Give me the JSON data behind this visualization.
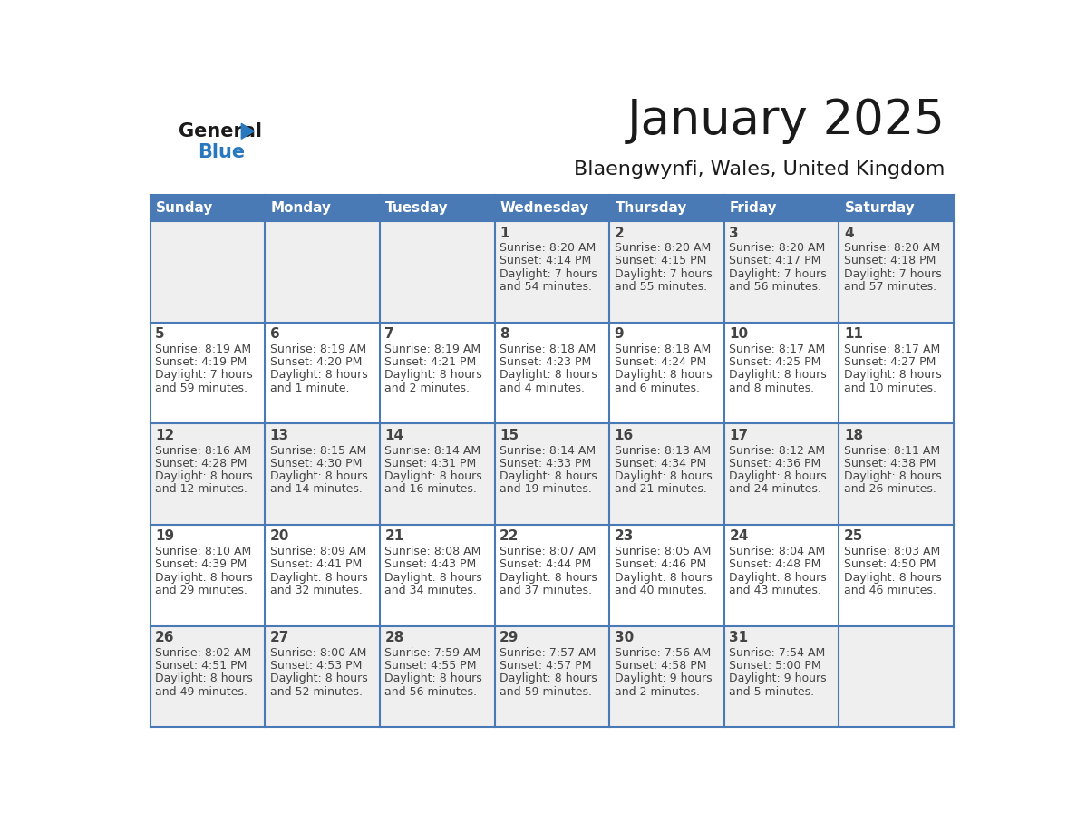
{
  "title": "January 2025",
  "subtitle": "Blaengwynfi, Wales, United Kingdom",
  "days_of_week": [
    "Sunday",
    "Monday",
    "Tuesday",
    "Wednesday",
    "Thursday",
    "Friday",
    "Saturday"
  ],
  "header_bg": "#4a7ab5",
  "header_text_color": "#ffffff",
  "row_bg_light": "#efefef",
  "row_bg_white": "#ffffff",
  "cell_border_color": "#4a7ab5",
  "title_color": "#1a1a1a",
  "subtitle_color": "#1a1a1a",
  "text_color": "#444444",
  "logo_general_color": "#1a1a1a",
  "logo_blue_color": "#2878c0",
  "weeks": [
    [
      {
        "day": null,
        "sunrise": null,
        "sunset": null,
        "daylight": null
      },
      {
        "day": null,
        "sunrise": null,
        "sunset": null,
        "daylight": null
      },
      {
        "day": null,
        "sunrise": null,
        "sunset": null,
        "daylight": null
      },
      {
        "day": 1,
        "sunrise": "8:20 AM",
        "sunset": "4:14 PM",
        "dl1": "Daylight: 7 hours",
        "dl2": "and 54 minutes."
      },
      {
        "day": 2,
        "sunrise": "8:20 AM",
        "sunset": "4:15 PM",
        "dl1": "Daylight: 7 hours",
        "dl2": "and 55 minutes."
      },
      {
        "day": 3,
        "sunrise": "8:20 AM",
        "sunset": "4:17 PM",
        "dl1": "Daylight: 7 hours",
        "dl2": "and 56 minutes."
      },
      {
        "day": 4,
        "sunrise": "8:20 AM",
        "sunset": "4:18 PM",
        "dl1": "Daylight: 7 hours",
        "dl2": "and 57 minutes."
      }
    ],
    [
      {
        "day": 5,
        "sunrise": "8:19 AM",
        "sunset": "4:19 PM",
        "dl1": "Daylight: 7 hours",
        "dl2": "and 59 minutes."
      },
      {
        "day": 6,
        "sunrise": "8:19 AM",
        "sunset": "4:20 PM",
        "dl1": "Daylight: 8 hours",
        "dl2": "and 1 minute."
      },
      {
        "day": 7,
        "sunrise": "8:19 AM",
        "sunset": "4:21 PM",
        "dl1": "Daylight: 8 hours",
        "dl2": "and 2 minutes."
      },
      {
        "day": 8,
        "sunrise": "8:18 AM",
        "sunset": "4:23 PM",
        "dl1": "Daylight: 8 hours",
        "dl2": "and 4 minutes."
      },
      {
        "day": 9,
        "sunrise": "8:18 AM",
        "sunset": "4:24 PM",
        "dl1": "Daylight: 8 hours",
        "dl2": "and 6 minutes."
      },
      {
        "day": 10,
        "sunrise": "8:17 AM",
        "sunset": "4:25 PM",
        "dl1": "Daylight: 8 hours",
        "dl2": "and 8 minutes."
      },
      {
        "day": 11,
        "sunrise": "8:17 AM",
        "sunset": "4:27 PM",
        "dl1": "Daylight: 8 hours",
        "dl2": "and 10 minutes."
      }
    ],
    [
      {
        "day": 12,
        "sunrise": "8:16 AM",
        "sunset": "4:28 PM",
        "dl1": "Daylight: 8 hours",
        "dl2": "and 12 minutes."
      },
      {
        "day": 13,
        "sunrise": "8:15 AM",
        "sunset": "4:30 PM",
        "dl1": "Daylight: 8 hours",
        "dl2": "and 14 minutes."
      },
      {
        "day": 14,
        "sunrise": "8:14 AM",
        "sunset": "4:31 PM",
        "dl1": "Daylight: 8 hours",
        "dl2": "and 16 minutes."
      },
      {
        "day": 15,
        "sunrise": "8:14 AM",
        "sunset": "4:33 PM",
        "dl1": "Daylight: 8 hours",
        "dl2": "and 19 minutes."
      },
      {
        "day": 16,
        "sunrise": "8:13 AM",
        "sunset": "4:34 PM",
        "dl1": "Daylight: 8 hours",
        "dl2": "and 21 minutes."
      },
      {
        "day": 17,
        "sunrise": "8:12 AM",
        "sunset": "4:36 PM",
        "dl1": "Daylight: 8 hours",
        "dl2": "and 24 minutes."
      },
      {
        "day": 18,
        "sunrise": "8:11 AM",
        "sunset": "4:38 PM",
        "dl1": "Daylight: 8 hours",
        "dl2": "and 26 minutes."
      }
    ],
    [
      {
        "day": 19,
        "sunrise": "8:10 AM",
        "sunset": "4:39 PM",
        "dl1": "Daylight: 8 hours",
        "dl2": "and 29 minutes."
      },
      {
        "day": 20,
        "sunrise": "8:09 AM",
        "sunset": "4:41 PM",
        "dl1": "Daylight: 8 hours",
        "dl2": "and 32 minutes."
      },
      {
        "day": 21,
        "sunrise": "8:08 AM",
        "sunset": "4:43 PM",
        "dl1": "Daylight: 8 hours",
        "dl2": "and 34 minutes."
      },
      {
        "day": 22,
        "sunrise": "8:07 AM",
        "sunset": "4:44 PM",
        "dl1": "Daylight: 8 hours",
        "dl2": "and 37 minutes."
      },
      {
        "day": 23,
        "sunrise": "8:05 AM",
        "sunset": "4:46 PM",
        "dl1": "Daylight: 8 hours",
        "dl2": "and 40 minutes."
      },
      {
        "day": 24,
        "sunrise": "8:04 AM",
        "sunset": "4:48 PM",
        "dl1": "Daylight: 8 hours",
        "dl2": "and 43 minutes."
      },
      {
        "day": 25,
        "sunrise": "8:03 AM",
        "sunset": "4:50 PM",
        "dl1": "Daylight: 8 hours",
        "dl2": "and 46 minutes."
      }
    ],
    [
      {
        "day": 26,
        "sunrise": "8:02 AM",
        "sunset": "4:51 PM",
        "dl1": "Daylight: 8 hours",
        "dl2": "and 49 minutes."
      },
      {
        "day": 27,
        "sunrise": "8:00 AM",
        "sunset": "4:53 PM",
        "dl1": "Daylight: 8 hours",
        "dl2": "and 52 minutes."
      },
      {
        "day": 28,
        "sunrise": "7:59 AM",
        "sunset": "4:55 PM",
        "dl1": "Daylight: 8 hours",
        "dl2": "and 56 minutes."
      },
      {
        "day": 29,
        "sunrise": "7:57 AM",
        "sunset": "4:57 PM",
        "dl1": "Daylight: 8 hours",
        "dl2": "and 59 minutes."
      },
      {
        "day": 30,
        "sunrise": "7:56 AM",
        "sunset": "4:58 PM",
        "dl1": "Daylight: 9 hours",
        "dl2": "and 2 minutes."
      },
      {
        "day": 31,
        "sunrise": "7:54 AM",
        "sunset": "5:00 PM",
        "dl1": "Daylight: 9 hours",
        "dl2": "and 5 minutes."
      },
      {
        "day": null,
        "sunrise": null,
        "sunset": null,
        "daylight": null,
        "dl1": null,
        "dl2": null
      }
    ]
  ]
}
